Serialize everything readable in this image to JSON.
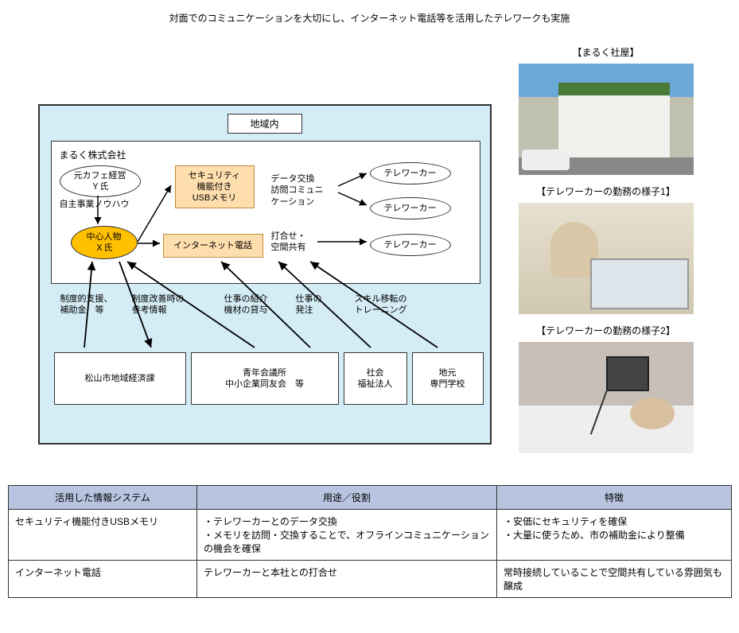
{
  "title": "対面でのコミュニケーションを大切にし、インターネット電話等を活用したテレワークも実施",
  "diagram": {
    "regionLabel": "地域内",
    "companyLabel": "まるく株式会社",
    "nodes": {
      "yShi": "元カフェ経営\nＹ氏",
      "xShi": "中心人物\nＸ氏",
      "usb": "セキュリティ\n機能付き\nUSBメモリ",
      "netPhone": "インターネット電話",
      "tw1": "テレワーカー",
      "tw2": "テレワーカー",
      "tw3": "テレワーカー"
    },
    "linkLabels": {
      "knowhow": "自主事業ノウハウ",
      "data": "データ交換\n訪問コミュニ\nケーション",
      "meeting": "打合せ・\n空間共有",
      "support": "制度的支援、\n補助金　等",
      "improvement": "制度改善時の\n参考情報",
      "introduce": "仕事の紹介\n機材の貸与",
      "order": "仕事の\n発注",
      "training": "スキル移転の\nトレーニング"
    },
    "bottomBoxes": {
      "matsuyama": "松山市地域経済課",
      "seinen": "青年会議所\n中小企業同友会　等",
      "shakai": "社会\n福祉法人",
      "senmon": "地元\n専門学校"
    }
  },
  "photos": {
    "cap1": "【まるく社屋】",
    "cap2": "【テレワーカーの勤務の様子1】",
    "cap3": "【テレワーカーの勤務の様子2】"
  },
  "table": {
    "headers": [
      "活用した情報システム",
      "用途／役割",
      "特徴"
    ],
    "rows": [
      [
        "セキュリティ機能付きUSBメモリ",
        "・テレワーカーとのデータ交換\n・メモリを訪問・交換することで、オフラインコミュニケーションの機会を確保",
        "・安価にセキュリティを確保\n・大量に使うため、市の補助金により整備"
      ],
      [
        "インターネット電話",
        "テレワーカーと本社との打合せ",
        "常時接続していることで空間共有している雰囲気も醸成"
      ]
    ]
  },
  "style": {
    "regionBg": "#d4ecf5",
    "orangeFill": "#ffc000",
    "orangeBoxFill": "#ffdead",
    "tableHeaderBg": "#b8c4e0"
  }
}
